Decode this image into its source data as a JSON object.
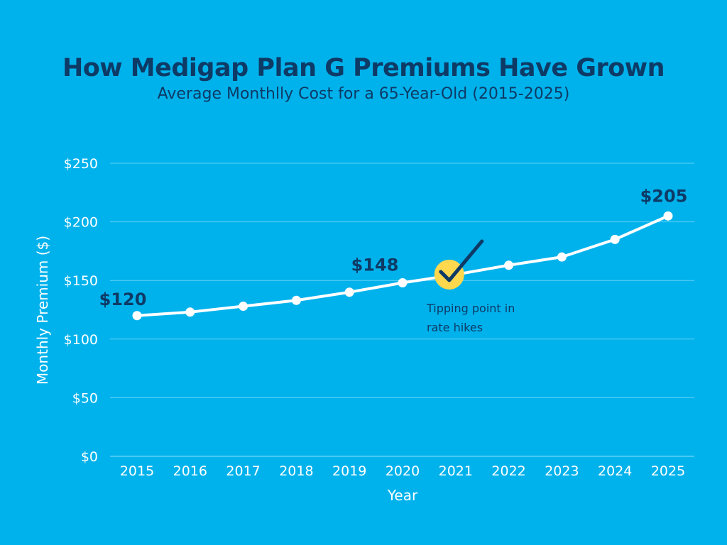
{
  "title": "How Medigap Plan G Premiums Have Grown",
  "subtitle": "Average Monthlly Cost for a 65-Year-Old (2015-2025)",
  "colors": {
    "background": "#00B2EC",
    "title": "#0E3A66",
    "line": "#FFFFFF",
    "highlight": "#FFD84D",
    "grid": "#5FD0F5"
  },
  "chart_data": {
    "type": "line",
    "title": "How Medigap Plan G Premiums Have Grown",
    "subtitle": "Average Monthlly Cost for a 65-Year-Old (2015-2025)",
    "xlabel": "Year",
    "ylabel": "Monthly Premium ($)",
    "x": [
      "2015",
      "2016",
      "2017",
      "2018",
      "2019",
      "2020",
      "2021",
      "2022",
      "2023",
      "2024",
      "2025"
    ],
    "series": [
      {
        "values": [
          120,
          123,
          128,
          133,
          140,
          148,
          155,
          163,
          170,
          185,
          205
        ]
      }
    ],
    "ylim": [
      0,
      250
    ],
    "yticks": [
      0,
      50,
      100,
      150,
      200,
      250
    ],
    "ytick_labels": [
      "$0",
      "$50",
      "$100",
      "$150",
      "$200",
      "$250"
    ],
    "grid": true,
    "data_labels": [
      {
        "year": "2015",
        "text": "$120"
      },
      {
        "year": "2020",
        "text": "$148"
      },
      {
        "year": "2025",
        "text": "$205"
      }
    ],
    "annotation": {
      "year": "2021",
      "icon": "checkmark-icon",
      "lines": [
        "Tipping point in",
        "rate hikes"
      ]
    }
  }
}
